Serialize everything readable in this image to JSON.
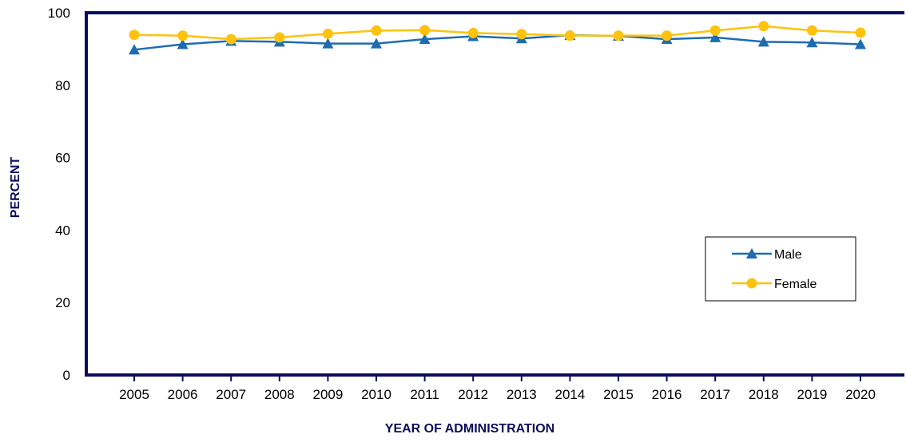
{
  "chart_data": {
    "type": "line",
    "title": "",
    "xlabel": "YEAR OF ADMINISTRATION",
    "ylabel": "PERCENT",
    "categories": [
      "2005",
      "2006",
      "2007",
      "2008",
      "2009",
      "2010",
      "2011",
      "2012",
      "2013",
      "2014",
      "2015",
      "2016",
      "2017",
      "2018",
      "2019",
      "2020"
    ],
    "ylim": [
      0,
      100
    ],
    "yticks": [
      "0",
      "20",
      "40",
      "60",
      "80",
      "100"
    ],
    "grid": false,
    "legend_position": "right",
    "series": [
      {
        "name": "Male",
        "marker": "triangle",
        "color": "#1f6cb0",
        "values": [
          89.8,
          91.3,
          92.2,
          92.0,
          91.5,
          91.5,
          92.7,
          93.5,
          92.9,
          93.8,
          93.6,
          92.7,
          93.2,
          92.0,
          91.8,
          91.3
        ]
      },
      {
        "name": "Female",
        "marker": "circle",
        "color": "#ffc20e",
        "values": [
          93.9,
          93.7,
          92.7,
          93.2,
          94.2,
          95.1,
          95.2,
          94.4,
          94.1,
          93.7,
          93.7,
          93.7,
          95.1,
          96.3,
          95.1,
          94.5
        ]
      }
    ],
    "colors": {
      "axis": "#0c0c5c"
    }
  }
}
